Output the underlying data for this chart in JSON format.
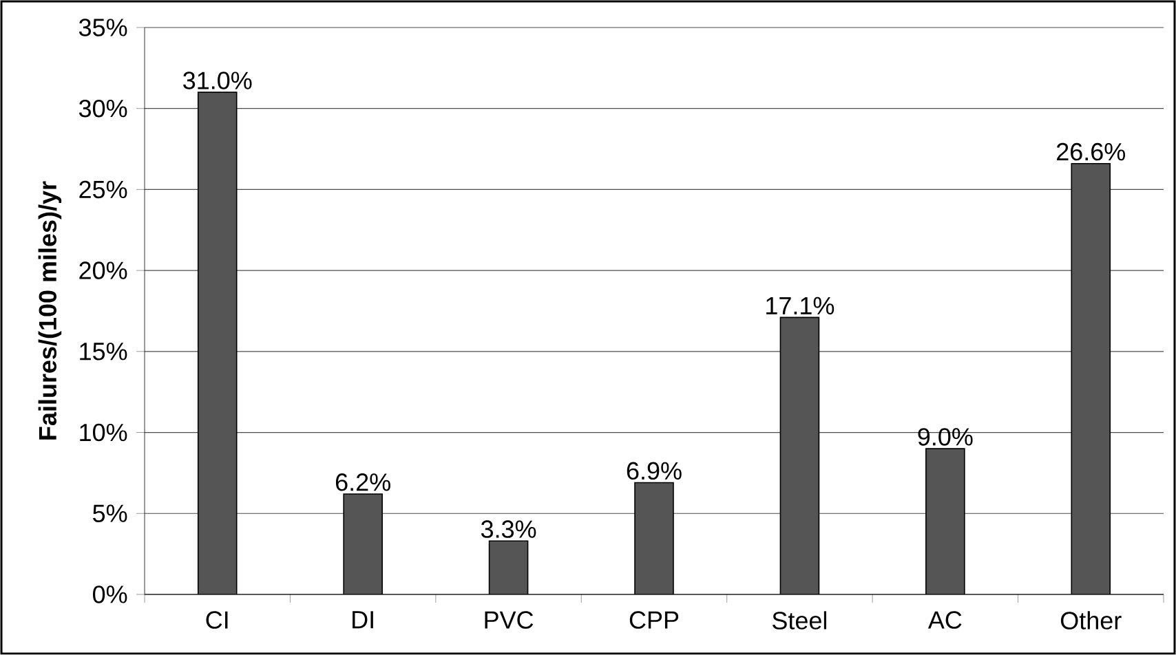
{
  "chart_data": {
    "type": "bar",
    "ylabel": "Failures/(100 miles)/yr",
    "categories": [
      "CI",
      "DI",
      "PVC",
      "CPP",
      "Steel",
      "AC",
      "Other"
    ],
    "values": [
      31.0,
      6.2,
      3.3,
      6.9,
      17.1,
      9.0,
      26.6
    ],
    "value_labels": [
      "31.0%",
      "6.2%",
      "3.3%",
      "6.9%",
      "17.1%",
      "9.0%",
      "26.6%"
    ],
    "color": "#555555",
    "ylim": [
      0,
      35
    ],
    "yticks": [
      {
        "value": 0,
        "label": "0%"
      },
      {
        "value": 5,
        "label": "5%"
      },
      {
        "value": 10,
        "label": "10%"
      },
      {
        "value": 15,
        "label": "15%"
      },
      {
        "value": 20,
        "label": "20%"
      },
      {
        "value": 25,
        "label": "25%"
      },
      {
        "value": 30,
        "label": "30%"
      },
      {
        "value": 35,
        "label": "35%"
      }
    ],
    "grid": "y"
  }
}
